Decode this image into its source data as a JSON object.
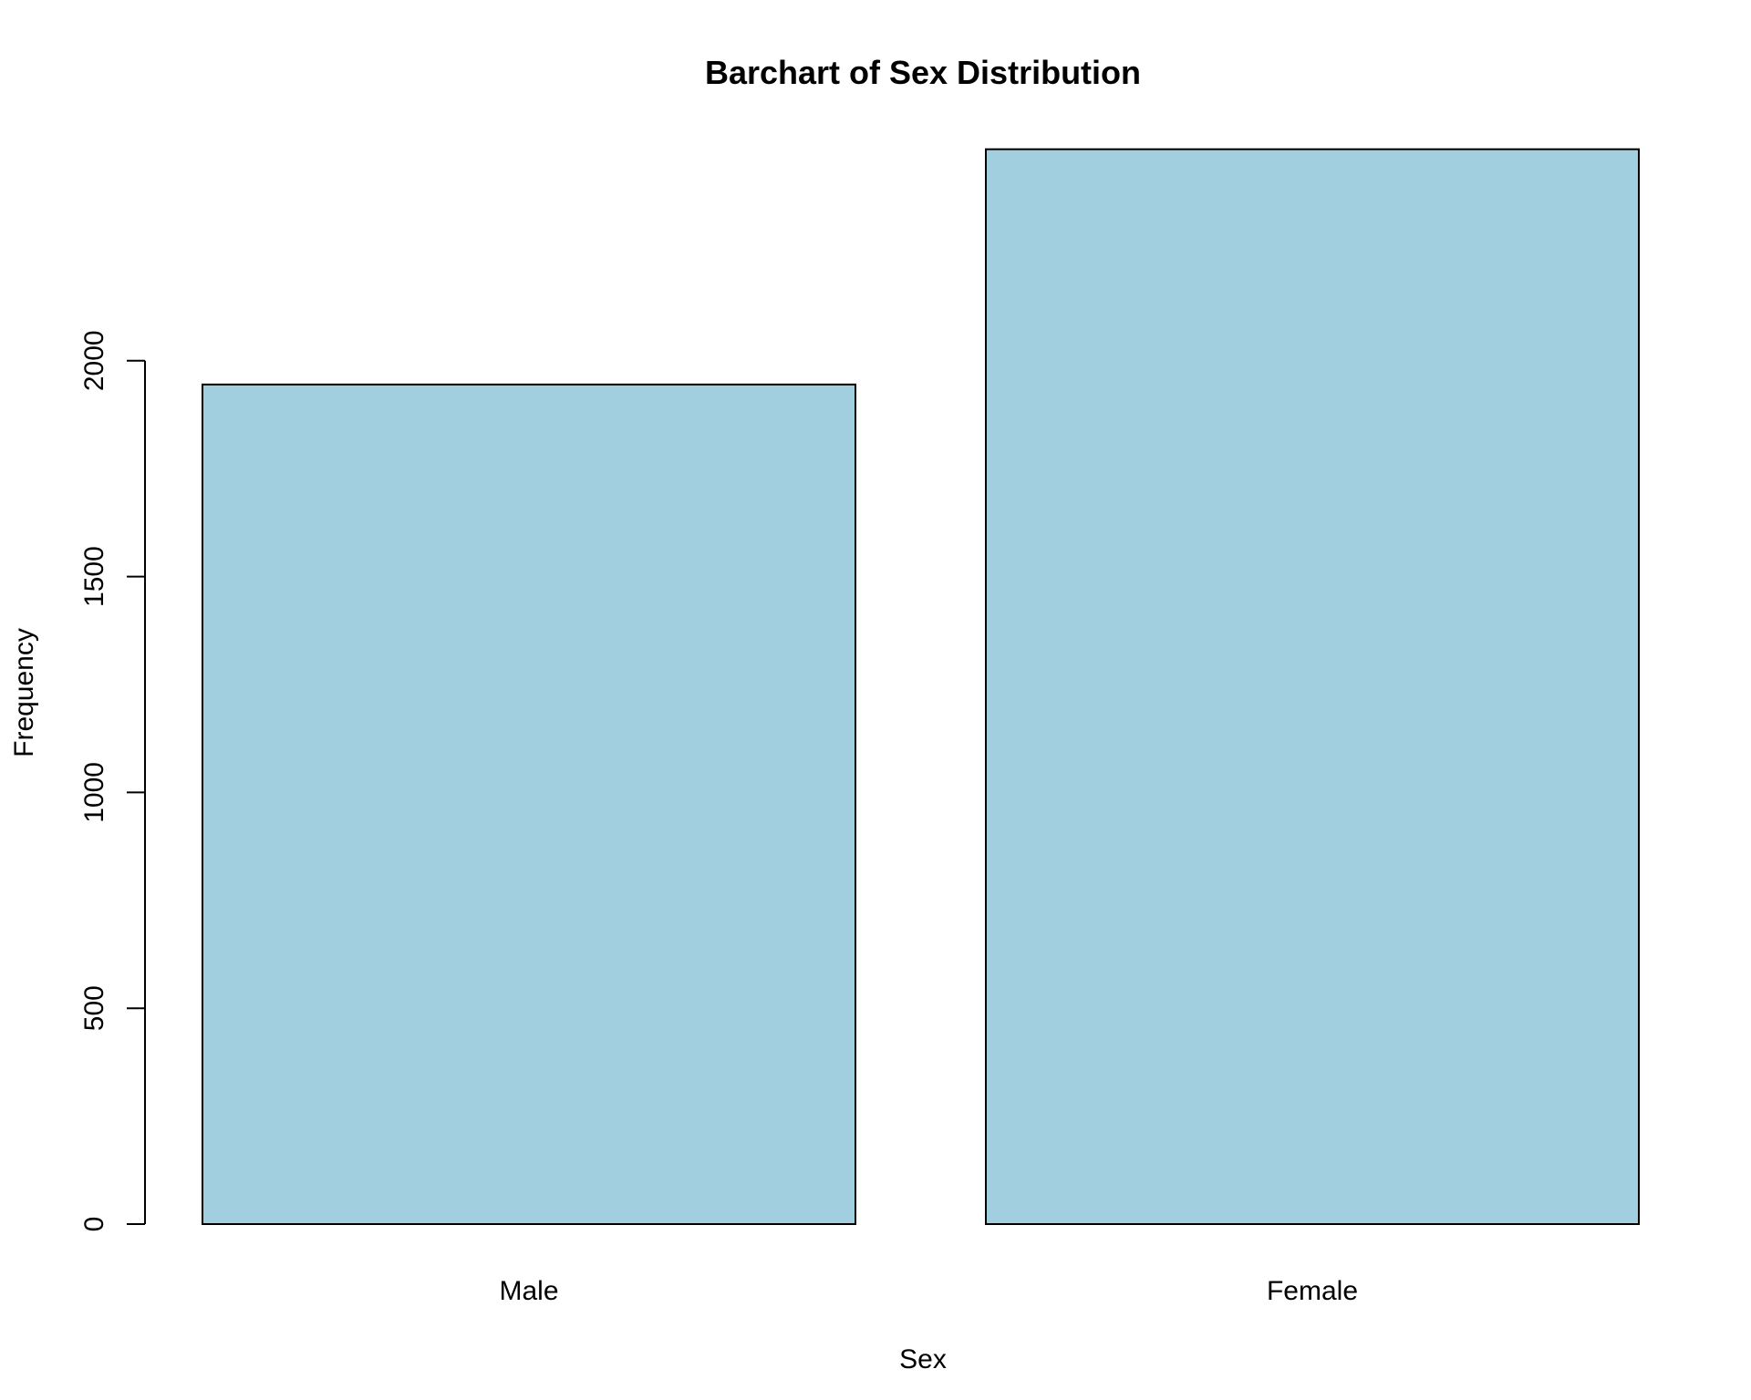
{
  "chart_data": {
    "type": "bar",
    "title": "Barchart of Sex Distribution",
    "xlabel": "Sex",
    "ylabel": "Frequency",
    "categories": [
      "Male",
      "Female"
    ],
    "values": [
      1945,
      2490
    ],
    "ylim": [
      0,
      2500
    ],
    "yticks": [
      "0",
      "500",
      "1000",
      "1500",
      "2000"
    ],
    "bar_color": "#A1CFE0",
    "grid": false,
    "legend": "none"
  }
}
